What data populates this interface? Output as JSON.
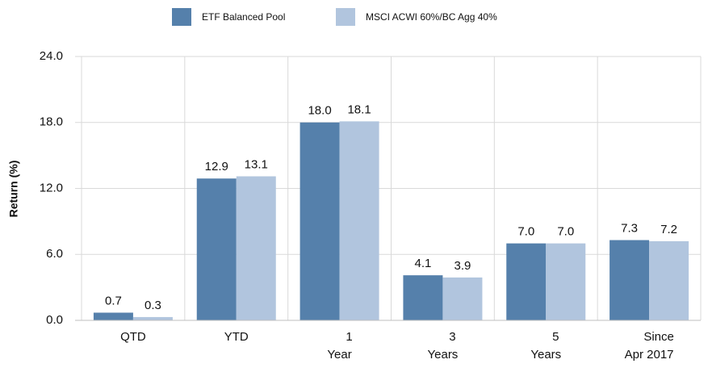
{
  "chart_data": {
    "type": "bar",
    "y_label": "Return (%)",
    "categories": [
      "QTD",
      "YTD",
      "1\nYear",
      "3\nYears",
      "5\nYears",
      "Since\nApr 2017"
    ],
    "series": [
      {
        "name": "ETF Balanced Pool",
        "color": "#5580ab",
        "values": [
          0.7,
          12.9,
          18.0,
          4.1,
          7.0,
          7.3
        ],
        "value_labels": [
          "0.7",
          "12.9",
          "18.0",
          "4.1",
          "7.0",
          "7.3"
        ]
      },
      {
        "name": "MSCI ACWI 60%/BC Agg 40%",
        "color": "#b1c5de",
        "values": [
          0.3,
          13.1,
          18.1,
          3.9,
          7.0,
          7.2
        ],
        "value_labels": [
          "0.3",
          "13.1",
          "18.1",
          "3.9",
          "7.0",
          "7.2"
        ]
      }
    ],
    "ylim": [
      0,
      24
    ],
    "yticks": [
      {
        "value": 0,
        "label": "0.0"
      },
      {
        "value": 6,
        "label": "6.0"
      },
      {
        "value": 12,
        "label": "12.0"
      },
      {
        "value": 18,
        "label": "18.0"
      },
      {
        "value": 24,
        "label": "24.0"
      }
    ],
    "grid": true
  }
}
